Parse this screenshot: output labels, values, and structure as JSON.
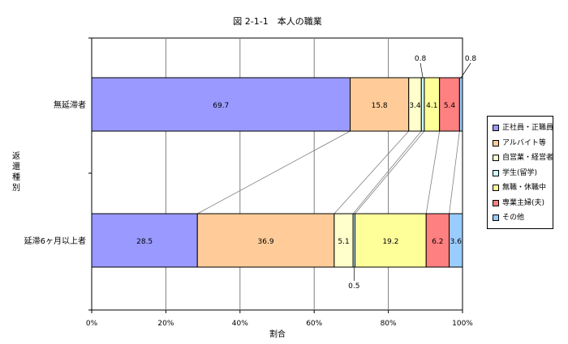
{
  "chart_data": {
    "type": "bar",
    "orientation": "horizontal",
    "stacked": "percent",
    "title": "図 2-1-1　本人の職業",
    "xlabel": "割合",
    "ylabel": "返還種別",
    "xlim": [
      0,
      100
    ],
    "xticks": [
      "0%",
      "20%",
      "40%",
      "60%",
      "80%",
      "100%"
    ],
    "grid": true,
    "legend_position": "right",
    "categories": [
      "無延滞者",
      "延滞6ヶ月以上者"
    ],
    "series": [
      {
        "name": "正社員・正職員",
        "color": "#9999ff",
        "values": [
          69.7,
          28.5
        ]
      },
      {
        "name": "アルバイト等",
        "color": "#ffcc99",
        "values": [
          15.8,
          36.9
        ]
      },
      {
        "name": "自営業・経営者",
        "color": "#ffffcc",
        "values": [
          3.4,
          5.1
        ]
      },
      {
        "name": "学生(留学)",
        "color": "#ccffff",
        "values": [
          0.8,
          0.5
        ]
      },
      {
        "name": "無職・休職中",
        "color": "#ffff99",
        "values": [
          4.1,
          19.2
        ]
      },
      {
        "name": "専業主婦(夫)",
        "color": "#ff8080",
        "values": [
          5.4,
          6.2
        ]
      },
      {
        "name": "その他",
        "color": "#99ccff",
        "values": [
          0.8,
          3.6
        ]
      }
    ]
  }
}
